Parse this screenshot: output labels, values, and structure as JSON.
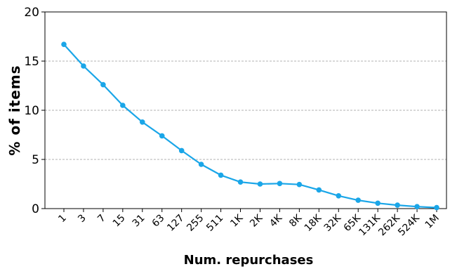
{
  "chart_data": {
    "type": "line",
    "xlabel": "Num. repurchases",
    "ylabel": "% of items",
    "ylim": [
      0,
      20
    ],
    "yticks": [
      "0",
      "5",
      "10",
      "15",
      "20"
    ],
    "ytick_values": [
      0,
      5,
      10,
      15,
      20
    ],
    "grid": "horizontal dashed",
    "categories": [
      "1",
      "3",
      "7",
      "15",
      "31",
      "63",
      "127",
      "255",
      "511",
      "1K",
      "2K",
      "4K",
      "8K",
      "18K",
      "32K",
      "65K",
      "131K",
      "262K",
      "524K",
      "1M"
    ],
    "series": [
      {
        "color": "#1aa6e8",
        "values": [
          16.7,
          14.5,
          12.6,
          10.5,
          8.8,
          7.4,
          5.9,
          4.5,
          3.4,
          2.7,
          2.5,
          2.55,
          2.45,
          1.9,
          1.3,
          0.85,
          0.55,
          0.35,
          0.2,
          0.1
        ]
      }
    ]
  }
}
